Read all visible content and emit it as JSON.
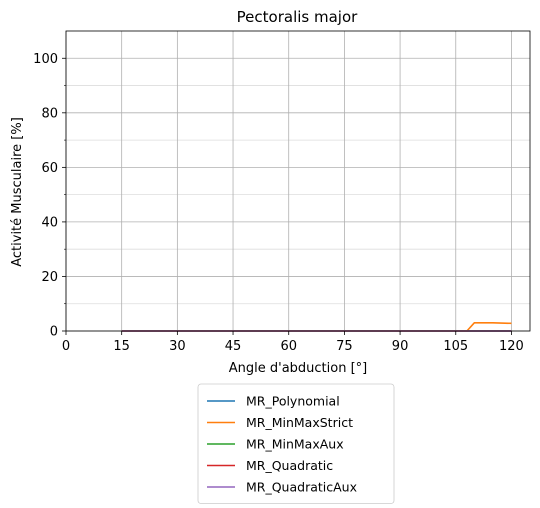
{
  "chart_data": {
    "type": "line",
    "title": "Pectoralis major",
    "xlabel": "Angle d'abduction [°]",
    "ylabel": "Activité Musculaire [%]",
    "xlim": [
      0,
      125
    ],
    "ylim": [
      0,
      110
    ],
    "xticks": [
      0,
      15,
      30,
      45,
      60,
      75,
      90,
      105,
      120
    ],
    "yticks": [
      0,
      20,
      40,
      60,
      80,
      100
    ],
    "y_minor_ticks": [
      10,
      30,
      50,
      70,
      90
    ],
    "grid": true,
    "legend_position": "below",
    "x": [
      15,
      20,
      25,
      30,
      35,
      40,
      45,
      50,
      55,
      60,
      65,
      70,
      75,
      80,
      85,
      90,
      95,
      100,
      105,
      108,
      110,
      115,
      120
    ],
    "series": [
      {
        "name": "MR_Polynomial",
        "color": "#1f77b4",
        "values": [
          0,
          0,
          0,
          0,
          0,
          0,
          0,
          0,
          0,
          0,
          0,
          0,
          0,
          0,
          0,
          0,
          0,
          0,
          0,
          0,
          0,
          0,
          0
        ]
      },
      {
        "name": "MR_MinMaxStrict",
        "color": "#ff7f0e",
        "values": [
          0,
          0,
          0,
          0,
          0,
          0,
          0,
          0,
          0,
          0,
          0,
          0,
          0,
          0,
          0,
          0,
          0,
          0,
          0,
          0,
          3,
          3,
          2.8
        ]
      },
      {
        "name": "MR_MinMaxAux",
        "color": "#2ca02c",
        "values": [
          0,
          0,
          0,
          0,
          0,
          0,
          0,
          0,
          0,
          0,
          0,
          0,
          0,
          0,
          0,
          0,
          0,
          0,
          0,
          0,
          0,
          0,
          0
        ]
      },
      {
        "name": "MR_Quadratic",
        "color": "#d62728",
        "values": [
          0,
          0,
          0,
          0,
          0,
          0,
          0,
          0,
          0,
          0,
          0,
          0,
          0,
          0,
          0,
          0,
          0,
          0,
          0,
          0,
          0,
          0,
          0
        ]
      },
      {
        "name": "MR_QuadraticAux",
        "color": "#9467bd",
        "values": [
          0,
          0,
          0,
          0,
          0,
          0,
          0,
          0,
          0,
          0,
          0,
          0,
          0,
          0,
          0,
          0,
          0,
          0,
          0,
          0,
          0,
          0,
          0
        ]
      }
    ]
  }
}
